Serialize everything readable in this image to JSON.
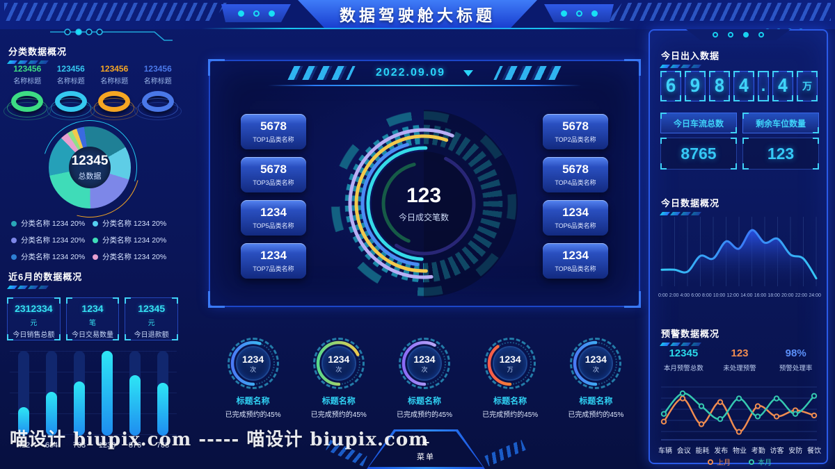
{
  "header": {
    "title": "数据驾驶舱大标题"
  },
  "watermark": "喵设计 biupix.com ----- 喵设计 biupix.com",
  "left": {
    "section1_title": "分类数据概况",
    "rings": [
      {
        "value": "123456",
        "label": "名称标题",
        "color": "#3ddc84"
      },
      {
        "value": "123456",
        "label": "名称标题",
        "color": "#35c8f0"
      },
      {
        "value": "123456",
        "label": "名称标题",
        "color": "#f5a623"
      },
      {
        "value": "123456",
        "label": "名称标题",
        "color": "#4a78e8"
      }
    ],
    "legend": [
      {
        "color": "#2aa7b8",
        "text": "分类名称 1234 20%"
      },
      {
        "color": "#56d0f0",
        "text": "分类名称 1234 20%"
      },
      {
        "color": "#7d87e8",
        "text": "分类名称 1234 20%"
      },
      {
        "color": "#3fdcb8",
        "text": "分类名称 1234 20%"
      },
      {
        "color": "#2e7fd4",
        "text": "分类名称 1234 20%"
      },
      {
        "color": "#e8a0d0",
        "text": "分类名称 1234 20%"
      }
    ],
    "section2_title": "近6月的数据概况",
    "stats": [
      {
        "value": "2312334",
        "unit": "元",
        "label": "今日销售总额"
      },
      {
        "value": "1234",
        "unit": "笔",
        "label": "今日交易数量"
      },
      {
        "value": "12345",
        "unit": "元",
        "label": "今日退款额"
      }
    ]
  },
  "center": {
    "date": "2022.09.09",
    "top_left": [
      {
        "value": "5678",
        "label": "TOP1品类名称"
      },
      {
        "value": "5678",
        "label": "TOP3品类名称"
      },
      {
        "value": "1234",
        "label": "TOP5品类名称"
      },
      {
        "value": "1234",
        "label": "TOP7品类名称"
      }
    ],
    "top_right": [
      {
        "value": "5678",
        "label": "TOP2品类名称"
      },
      {
        "value": "5678",
        "label": "TOP4品类名称"
      },
      {
        "value": "1234",
        "label": "TOP6品类名称"
      },
      {
        "value": "1234",
        "label": "TOP8品类名称"
      }
    ],
    "gauges": [
      {
        "value": "1234",
        "unit": "次",
        "title": "标题名称",
        "sub": "已完成预约的45%",
        "colors": [
          "#35d8f0",
          "#4a7af5"
        ],
        "frac": 0.55
      },
      {
        "value": "1234",
        "unit": "次",
        "title": "标题名称",
        "sub": "已完成预约的45%",
        "colors": [
          "#f2c94c",
          "#58d88a"
        ],
        "frac": 0.68
      },
      {
        "value": "1234",
        "unit": "次",
        "title": "标题名称",
        "sub": "已完成预约的45%",
        "colors": [
          "#c8bcf8",
          "#8a6af5"
        ],
        "frac": 0.58
      },
      {
        "value": "1234",
        "unit": "万",
        "title": "标题名称",
        "sub": "已完成预约的45%",
        "colors": [
          "#f5a623",
          "#f55a4a"
        ],
        "frac": 0.4
      },
      {
        "value": "1234",
        "unit": "次",
        "title": "标题名称",
        "sub": "已完成预约的45%",
        "colors": [
          "#35d8f0",
          "#4a7af5"
        ],
        "frac": 0.5
      }
    ],
    "menu": {
      "plus": "+",
      "label": "菜单"
    }
  },
  "right": {
    "section1_title": "今日出入数据",
    "digits": [
      "6",
      "9",
      "8",
      "4",
      ".",
      "4",
      "万"
    ],
    "flow_header": "今日车流总数",
    "flow_value": "8765",
    "parking_header": "剩余车位数量",
    "parking_value": "123",
    "section2_title": "今日数据概况",
    "section3_title": "预警数据概况",
    "warning_stats": [
      {
        "value": "12345",
        "label": "本月预警总数",
        "color": "#2ad8e8"
      },
      {
        "value": "123",
        "label": "未处理预警",
        "color": "#f08c50"
      },
      {
        "value": "98%",
        "label": "预警处理率",
        "color": "#5b8ff9"
      }
    ]
  },
  "chart_data": [
    {
      "id": "category-donut",
      "type": "pie",
      "title": "分类数据概况",
      "center_value": "12345",
      "center_label": "总数据",
      "slices": [
        {
          "color": "#1f8096",
          "value": 19
        },
        {
          "color": "#5ecde6",
          "value": 13
        },
        {
          "color": "#7d87e8",
          "value": 20
        },
        {
          "color": "#3fdcb8",
          "value": 22
        },
        {
          "color": "#25a0b8",
          "value": 16
        },
        {
          "color": "#e8a0d0",
          "value": 3
        },
        {
          "color": "#90e088",
          "value": 2
        },
        {
          "color": "#f2c94c",
          "value": 2
        },
        {
          "color": "#3a6ae0",
          "value": 3
        }
      ],
      "legend_note": "分类名称 1234 20% x6"
    },
    {
      "id": "six-month-bars",
      "type": "bar",
      "values": [
        412,
        634,
        783,
        1230,
        876,
        768
      ],
      "ylim": [
        0,
        1230
      ],
      "bar_colors": [
        "#2ee6f5",
        "#1e8cf0"
      ]
    },
    {
      "id": "center-gauge",
      "type": "gauge",
      "value": "123",
      "label": "今日成交笔数",
      "arcs": [
        {
          "color": "#b9aef5",
          "r": 106,
          "frac": 0.58,
          "start": 84
        },
        {
          "color": "#f2c94c",
          "r": 97,
          "frac": 0.56,
          "start": 88
        },
        {
          "color": "#4a8cf5",
          "r": 88,
          "frac": 0.44,
          "start": 96
        },
        {
          "color": "#35dbe8",
          "r": 80,
          "frac": 0.5,
          "start": 92
        },
        {
          "color": "#5b51e8",
          "r": 72,
          "frac": 0.52,
          "start": -64
        },
        {
          "color": "#2ed573",
          "r": 58,
          "frac": 0.4,
          "start": 112
        }
      ]
    },
    {
      "id": "today-area",
      "type": "area",
      "title": "今日数据概况",
      "x_labels": [
        "0:00",
        "2:00",
        "4:00",
        "6:00",
        "8:00",
        "10:00",
        "12:00",
        "14:00",
        "16:00",
        "18:00",
        "20:00",
        "22:00",
        "24:00"
      ],
      "values": [
        25,
        25,
        22,
        46,
        42,
        68,
        57,
        85,
        66,
        72,
        48,
        42,
        12
      ],
      "ylim": [
        0,
        100
      ],
      "line_colors": [
        "#35c8f5",
        "#3a7af8"
      ],
      "fill_color": "#2a52e8",
      "grid": "vertical"
    },
    {
      "id": "warning-lines",
      "type": "line",
      "title": "预警数据概况",
      "categories": [
        "车辆",
        "会议",
        "能耗",
        "发布",
        "物业",
        "考勤",
        "访客",
        "安防",
        "餐饮"
      ],
      "series": [
        {
          "name": "上月",
          "color": "#f08c50",
          "values": [
            30,
            75,
            25,
            68,
            10,
            60,
            40,
            52,
            42
          ]
        },
        {
          "name": "本月",
          "color": "#35c8b0",
          "values": [
            45,
            85,
            60,
            35,
            75,
            40,
            75,
            45,
            80
          ]
        }
      ],
      "ylim": [
        0,
        100
      ],
      "legend_position": "bottom",
      "grid": "horizontal"
    }
  ]
}
